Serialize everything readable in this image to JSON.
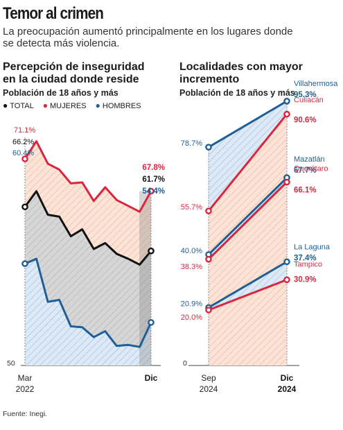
{
  "header": {
    "title": "Temor al crimen",
    "subtitle": "La preocupación aumentó principalmente en los lugares donde se detecta más violencia."
  },
  "left_chart": {
    "title_line1": "Percepción de inseguridad",
    "title_line2": "en la ciudad donde reside",
    "subtitle": "Población de 18 años y más",
    "legend": {
      "total": "TOTAL",
      "mujeres": "MUJERES",
      "hombres": "HOMBRES"
    },
    "start_labels": {
      "mujeres": "71.1%",
      "total": "66.2%",
      "hombres": "60.4%"
    },
    "end_labels": {
      "mujeres": "67.8%",
      "total": "61.7%",
      "hombres": "54.4%"
    },
    "y_base_label": "50",
    "x_start_label_1": "Mar",
    "x_start_label_2": "2022",
    "x_end_label": "Dic"
  },
  "right_chart": {
    "title_line1": "Localidades con mayor",
    "title_line2": "incremento",
    "subtitle": "Población de 18 años y más",
    "y_base_label": "0",
    "x_start_label_1": "Sep",
    "x_start_label_2": "2024",
    "x_end_label_1": "Dic",
    "x_end_label_2": "2024",
    "start_labels": [
      "78.7%",
      "55.7%",
      "40.0%",
      "38.3%",
      "20.9%",
      "20.0%"
    ]
  },
  "source": "Fuente: Inegi.",
  "colors": {
    "total": "#111111",
    "mujeres": "#d9263f",
    "hombres": "#1f5f96",
    "hatch_red": "#f2c9b7",
    "hatch_blue": "#bcd3e8"
  },
  "chart_data": [
    {
      "type": "line",
      "title": "Percepción de inseguridad en la ciudad donde reside",
      "subtitle": "Población de 18 años y más",
      "x": [
        "Mar 2022",
        "",
        "",
        "",
        "",
        "",
        "",
        "",
        "",
        "",
        "",
        "Dic"
      ],
      "series": [
        {
          "name": "MUJERES",
          "values": [
            71.1,
            72.9,
            70.6,
            70.0,
            68.6,
            68.7,
            66.8,
            68.2,
            66.9,
            66.3,
            65.7,
            67.8
          ]
        },
        {
          "name": "TOTAL",
          "values": [
            66.2,
            67.8,
            65.4,
            65.2,
            63.2,
            63.9,
            61.9,
            62.5,
            61.4,
            60.9,
            60.3,
            61.7
          ]
        },
        {
          "name": "HOMBRES",
          "values": [
            60.4,
            60.9,
            56.5,
            56.7,
            54.0,
            53.9,
            52.9,
            53.5,
            52.0,
            52.1,
            51.9,
            54.4
          ]
        }
      ],
      "ylim": [
        50,
        75
      ],
      "grid": false,
      "legend": "top"
    },
    {
      "type": "line",
      "title": "Localidades con mayor incremento",
      "subtitle": "Población de 18 años y más",
      "x": [
        "Sep 2024",
        "Dic 2024"
      ],
      "series": [
        {
          "name": "Villahermosa",
          "values": [
            78.7,
            95.3
          ]
        },
        {
          "name": "Culiacán",
          "values": [
            55.7,
            90.6
          ]
        },
        {
          "name": "Mazatlán",
          "values": [
            40.0,
            67.7
          ]
        },
        {
          "name": "Querétaro",
          "values": [
            38.3,
            66.1
          ]
        },
        {
          "name": "La Laguna",
          "values": [
            20.9,
            37.4
          ]
        },
        {
          "name": "Tampico",
          "values": [
            20.0,
            30.9
          ]
        }
      ],
      "ylim": [
        0,
        100
      ],
      "grid": false
    }
  ]
}
